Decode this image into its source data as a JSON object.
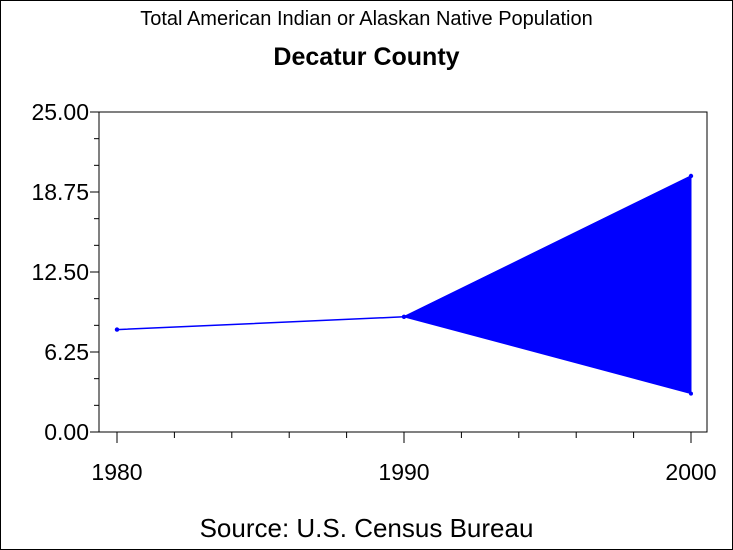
{
  "chart_data": {
    "type": "line",
    "title": "Total American Indian or Alaskan Native Population",
    "subtitle": "Decatur County",
    "footnote": "Source: U.S. Census Bureau",
    "x": [
      1980,
      1990,
      2000
    ],
    "x_tick_labels": [
      "1980",
      "1990",
      "2000"
    ],
    "ylim": [
      0,
      25
    ],
    "y_ticks": [
      0,
      6.25,
      12.5,
      18.75,
      25
    ],
    "y_tick_labels": [
      "0.00",
      "6.25",
      "12.50",
      "18.75",
      "25.00"
    ],
    "series": [
      {
        "values": [
          8,
          9,
          20
        ],
        "color": "#0000ff"
      }
    ],
    "band": {
      "x": [
        1990,
        2000
      ],
      "upper": [
        9,
        20
      ],
      "lower": [
        9,
        3
      ],
      "color": "#0000ff"
    },
    "grid": false,
    "legend": "none"
  }
}
